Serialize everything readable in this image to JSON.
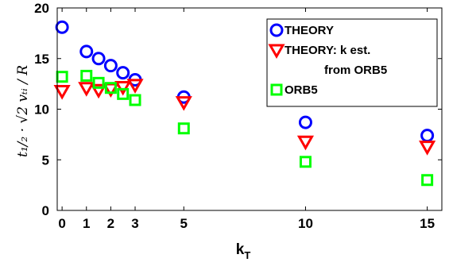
{
  "chart_data": {
    "type": "scatter",
    "xlabel": "k",
    "xlabel_sub": "T",
    "ylabel": "t₁/₂ · √2 vₜᵢ / R",
    "xlim": [
      -0.2,
      15.6
    ],
    "ylim": [
      0,
      20
    ],
    "xticks": [
      0,
      1,
      2,
      3,
      5,
      10,
      15
    ],
    "xtick_labels": [
      "0",
      "1",
      "2",
      "3",
      "5",
      "10",
      "15"
    ],
    "yticks": [
      0,
      5,
      10,
      15,
      20
    ],
    "ytick_labels": [
      "0",
      "5",
      "10",
      "15",
      "20"
    ],
    "legend_position": "top-right",
    "series": [
      {
        "name": "THEORY",
        "marker": "circle",
        "color": "#0000ff",
        "x": [
          0,
          1,
          1.5,
          2,
          2.5,
          3,
          5,
          10,
          15
        ],
        "y": [
          18.1,
          15.7,
          15.0,
          14.3,
          13.6,
          12.9,
          11.2,
          8.7,
          7.4
        ]
      },
      {
        "name": "THEORY: k est. from ORB5",
        "marker": "triangle-down",
        "color": "#ff0000",
        "x": [
          0,
          1,
          1.5,
          2,
          2.5,
          3,
          5,
          10,
          15
        ],
        "y": [
          11.8,
          12.1,
          11.9,
          12.0,
          12.2,
          12.4,
          10.7,
          6.8,
          6.3
        ]
      },
      {
        "name": "ORB5",
        "marker": "square",
        "color": "#00ff00",
        "x": [
          0,
          1,
          1.5,
          2,
          2.5,
          3,
          5,
          10,
          15
        ],
        "y": [
          13.2,
          13.3,
          12.6,
          12.1,
          11.5,
          10.9,
          8.1,
          4.8,
          3.0
        ]
      }
    ],
    "legend_lines": [
      {
        "text": "THEORY",
        "series": 0
      },
      {
        "text": "THEORY: k est.",
        "series": 1
      },
      {
        "text": "from ORB5",
        "series": -1
      },
      {
        "text": "ORB5",
        "series": 2
      }
    ]
  }
}
